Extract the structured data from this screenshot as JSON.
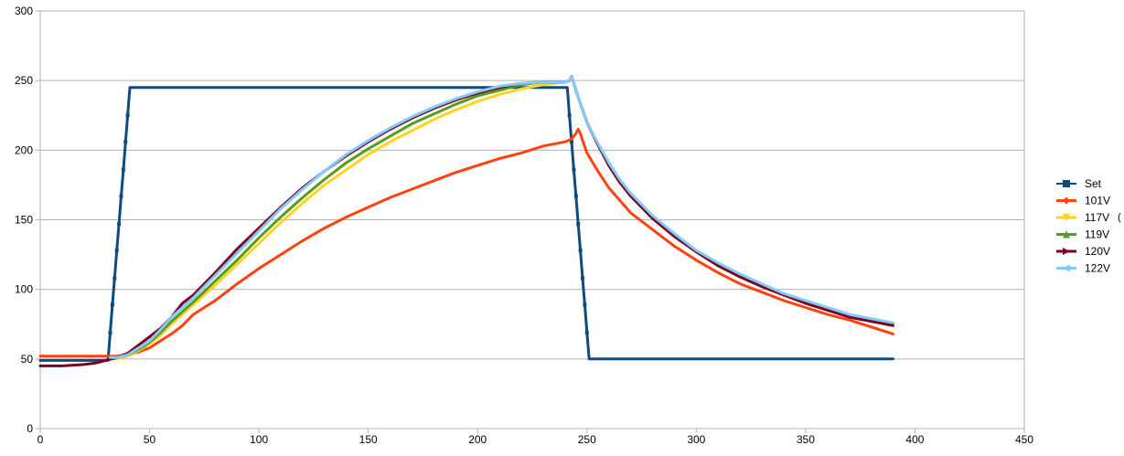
{
  "chart_data": {
    "type": "line",
    "title": "",
    "xlabel": "",
    "ylabel": "",
    "xlim": [
      0,
      450
    ],
    "ylim": [
      0,
      300
    ],
    "x_ticks": [
      0,
      50,
      100,
      150,
      200,
      250,
      300,
      350,
      400,
      450
    ],
    "y_ticks": [
      0,
      50,
      100,
      150,
      200,
      250,
      300
    ],
    "x_tick_labels": [
      "0",
      "50",
      "100",
      "150",
      "200",
      "250",
      "300",
      "350",
      "400",
      "450"
    ],
    "y_tick_labels": [
      "0",
      "50",
      "100",
      "150",
      "200",
      "250",
      "300"
    ],
    "grid": "horizontal",
    "legend_position": "right",
    "series": [
      {
        "name": "Set",
        "color": "#0d4a80",
        "marker": "square",
        "points": [
          [
            0,
            49
          ],
          [
            31,
            49
          ],
          [
            32,
            69
          ],
          [
            33,
            89
          ],
          [
            34,
            108
          ],
          [
            35,
            128
          ],
          [
            36,
            147
          ],
          [
            37,
            167
          ],
          [
            38,
            186
          ],
          [
            39,
            206
          ],
          [
            40,
            225
          ],
          [
            41,
            245
          ],
          [
            241,
            245
          ],
          [
            242,
            225
          ],
          [
            243,
            206
          ],
          [
            244,
            186
          ],
          [
            245,
            167
          ],
          [
            246,
            147
          ],
          [
            247,
            128
          ],
          [
            248,
            108
          ],
          [
            249,
            89
          ],
          [
            250,
            69
          ],
          [
            251,
            50
          ],
          [
            390,
            50
          ]
        ],
        "marker_points": [
          [
            32,
            69
          ],
          [
            33,
            89
          ],
          [
            34,
            108
          ],
          [
            35,
            128
          ],
          [
            36,
            147
          ],
          [
            37,
            167
          ],
          [
            38,
            186
          ],
          [
            39,
            206
          ],
          [
            40,
            225
          ],
          [
            242,
            225
          ],
          [
            243,
            206
          ],
          [
            244,
            186
          ],
          [
            245,
            167
          ],
          [
            246,
            147
          ],
          [
            247,
            128
          ],
          [
            248,
            108
          ],
          [
            249,
            89
          ],
          [
            250,
            69
          ]
        ]
      },
      {
        "name": "101V",
        "color": "#ff420e",
        "marker": "diamond",
        "points": [
          [
            0,
            52
          ],
          [
            30,
            52
          ],
          [
            35,
            52
          ],
          [
            40,
            53
          ],
          [
            45,
            55
          ],
          [
            50,
            58
          ],
          [
            55,
            63
          ],
          [
            60,
            68
          ],
          [
            65,
            74
          ],
          [
            70,
            82
          ],
          [
            75,
            87
          ],
          [
            80,
            92
          ],
          [
            90,
            104
          ],
          [
            100,
            115
          ],
          [
            110,
            125
          ],
          [
            120,
            135
          ],
          [
            130,
            144
          ],
          [
            140,
            152
          ],
          [
            150,
            159
          ],
          [
            160,
            166
          ],
          [
            170,
            172
          ],
          [
            180,
            178
          ],
          [
            190,
            184
          ],
          [
            200,
            189
          ],
          [
            210,
            194
          ],
          [
            220,
            198
          ],
          [
            230,
            203
          ],
          [
            240,
            206
          ],
          [
            243,
            208
          ],
          [
            245,
            212
          ],
          [
            246,
            215
          ],
          [
            247,
            212
          ],
          [
            248,
            207
          ],
          [
            250,
            198
          ],
          [
            255,
            185
          ],
          [
            260,
            173
          ],
          [
            265,
            164
          ],
          [
            270,
            155
          ],
          [
            280,
            143
          ],
          [
            290,
            131
          ],
          [
            300,
            121
          ],
          [
            310,
            112
          ],
          [
            320,
            104
          ],
          [
            330,
            98
          ],
          [
            340,
            92
          ],
          [
            350,
            87
          ],
          [
            360,
            82
          ],
          [
            370,
            78
          ],
          [
            380,
            73
          ],
          [
            390,
            68
          ]
        ]
      },
      {
        "name": "117V",
        "color": "#ffd320",
        "marker": "triangle-down",
        "points": [
          [
            32,
            50
          ],
          [
            35,
            50
          ],
          [
            40,
            52
          ],
          [
            45,
            56
          ],
          [
            50,
            61
          ],
          [
            55,
            67
          ],
          [
            60,
            75
          ],
          [
            70,
            89
          ],
          [
            80,
            103
          ],
          [
            90,
            118
          ],
          [
            100,
            133
          ],
          [
            110,
            148
          ],
          [
            120,
            162
          ],
          [
            130,
            175
          ],
          [
            140,
            186
          ],
          [
            150,
            197
          ],
          [
            160,
            206
          ],
          [
            170,
            214
          ],
          [
            180,
            222
          ],
          [
            190,
            229
          ],
          [
            200,
            235
          ],
          [
            210,
            240
          ],
          [
            220,
            244
          ],
          [
            230,
            247
          ],
          [
            240,
            249
          ],
          [
            242,
            250
          ],
          [
            243,
            253
          ],
          [
            244,
            248
          ],
          [
            246,
            238
          ],
          [
            250,
            220
          ],
          [
            255,
            204
          ],
          [
            260,
            189
          ],
          [
            265,
            177
          ],
          [
            270,
            167
          ],
          [
            280,
            151
          ],
          [
            290,
            138
          ],
          [
            300,
            127
          ],
          [
            310,
            117
          ],
          [
            320,
            109
          ],
          [
            330,
            102
          ],
          [
            340,
            96
          ],
          [
            350,
            90
          ],
          [
            360,
            85
          ],
          [
            370,
            81
          ],
          [
            380,
            77
          ],
          [
            390,
            74
          ]
        ]
      },
      {
        "name": "119V",
        "color": "#579d1c",
        "marker": "triangle-up",
        "points": [
          [
            32,
            50
          ],
          [
            35,
            51
          ],
          [
            40,
            53
          ],
          [
            45,
            57
          ],
          [
            50,
            62
          ],
          [
            55,
            69
          ],
          [
            60,
            77
          ],
          [
            70,
            91
          ],
          [
            80,
            106
          ],
          [
            90,
            121
          ],
          [
            100,
            137
          ],
          [
            110,
            152
          ],
          [
            120,
            166
          ],
          [
            130,
            179
          ],
          [
            140,
            191
          ],
          [
            150,
            201
          ],
          [
            160,
            210
          ],
          [
            170,
            219
          ],
          [
            180,
            226
          ],
          [
            190,
            233
          ],
          [
            200,
            239
          ],
          [
            210,
            243
          ],
          [
            220,
            247
          ],
          [
            230,
            249
          ],
          [
            240,
            249
          ],
          [
            242,
            250
          ],
          [
            243,
            253
          ],
          [
            244,
            248
          ],
          [
            246,
            238
          ],
          [
            250,
            220
          ],
          [
            255,
            204
          ],
          [
            260,
            189
          ],
          [
            265,
            177
          ],
          [
            270,
            167
          ],
          [
            280,
            151
          ],
          [
            290,
            138
          ],
          [
            300,
            127
          ],
          [
            310,
            117
          ],
          [
            320,
            109
          ],
          [
            330,
            102
          ],
          [
            340,
            96
          ],
          [
            350,
            90
          ],
          [
            360,
            85
          ],
          [
            370,
            81
          ],
          [
            380,
            77
          ],
          [
            390,
            75
          ]
        ]
      },
      {
        "name": "120V",
        "color": "#7e0021",
        "marker": "triangle-right",
        "points": [
          [
            0,
            45
          ],
          [
            10,
            45
          ],
          [
            20,
            46
          ],
          [
            25,
            47
          ],
          [
            30,
            49
          ],
          [
            35,
            51
          ],
          [
            40,
            54
          ],
          [
            45,
            60
          ],
          [
            50,
            66
          ],
          [
            55,
            72
          ],
          [
            60,
            80
          ],
          [
            65,
            90
          ],
          [
            70,
            96
          ],
          [
            80,
            112
          ],
          [
            90,
            129
          ],
          [
            100,
            144
          ],
          [
            110,
            159
          ],
          [
            120,
            173
          ],
          [
            130,
            185
          ],
          [
            140,
            196
          ],
          [
            150,
            206
          ],
          [
            160,
            215
          ],
          [
            170,
            223
          ],
          [
            180,
            230
          ],
          [
            190,
            236
          ],
          [
            200,
            241
          ],
          [
            210,
            245
          ],
          [
            220,
            248
          ],
          [
            230,
            249
          ],
          [
            240,
            249
          ],
          [
            242,
            250
          ],
          [
            243,
            253
          ],
          [
            244,
            248
          ],
          [
            246,
            238
          ],
          [
            250,
            220
          ],
          [
            255,
            204
          ],
          [
            260,
            189
          ],
          [
            265,
            177
          ],
          [
            270,
            167
          ],
          [
            280,
            151
          ],
          [
            290,
            138
          ],
          [
            300,
            127
          ],
          [
            310,
            117
          ],
          [
            320,
            109
          ],
          [
            330,
            102
          ],
          [
            340,
            96
          ],
          [
            350,
            90
          ],
          [
            360,
            85
          ],
          [
            370,
            80
          ],
          [
            380,
            77
          ],
          [
            390,
            74
          ]
        ]
      },
      {
        "name": "122V",
        "color": "#83caff",
        "marker": "triangle-left",
        "points": [
          [
            32,
            51
          ],
          [
            35,
            51
          ],
          [
            40,
            53
          ],
          [
            45,
            58
          ],
          [
            50,
            63
          ],
          [
            55,
            71
          ],
          [
            60,
            80
          ],
          [
            70,
            94
          ],
          [
            80,
            110
          ],
          [
            90,
            126
          ],
          [
            100,
            142
          ],
          [
            110,
            158
          ],
          [
            120,
            172
          ],
          [
            130,
            185
          ],
          [
            140,
            197
          ],
          [
            150,
            207
          ],
          [
            160,
            216
          ],
          [
            170,
            224
          ],
          [
            180,
            231
          ],
          [
            190,
            237
          ],
          [
            200,
            242
          ],
          [
            210,
            246
          ],
          [
            220,
            248
          ],
          [
            230,
            249
          ],
          [
            240,
            249
          ],
          [
            242,
            250
          ],
          [
            243,
            253
          ],
          [
            244,
            248
          ],
          [
            246,
            238
          ],
          [
            250,
            220
          ],
          [
            255,
            205
          ],
          [
            260,
            191
          ],
          [
            265,
            179
          ],
          [
            270,
            169
          ],
          [
            280,
            153
          ],
          [
            290,
            140
          ],
          [
            300,
            128
          ],
          [
            310,
            119
          ],
          [
            320,
            111
          ],
          [
            330,
            104
          ],
          [
            340,
            97
          ],
          [
            350,
            92
          ],
          [
            360,
            87
          ],
          [
            370,
            82
          ],
          [
            380,
            79
          ],
          [
            390,
            76
          ]
        ]
      }
    ]
  },
  "edge_mark": "("
}
